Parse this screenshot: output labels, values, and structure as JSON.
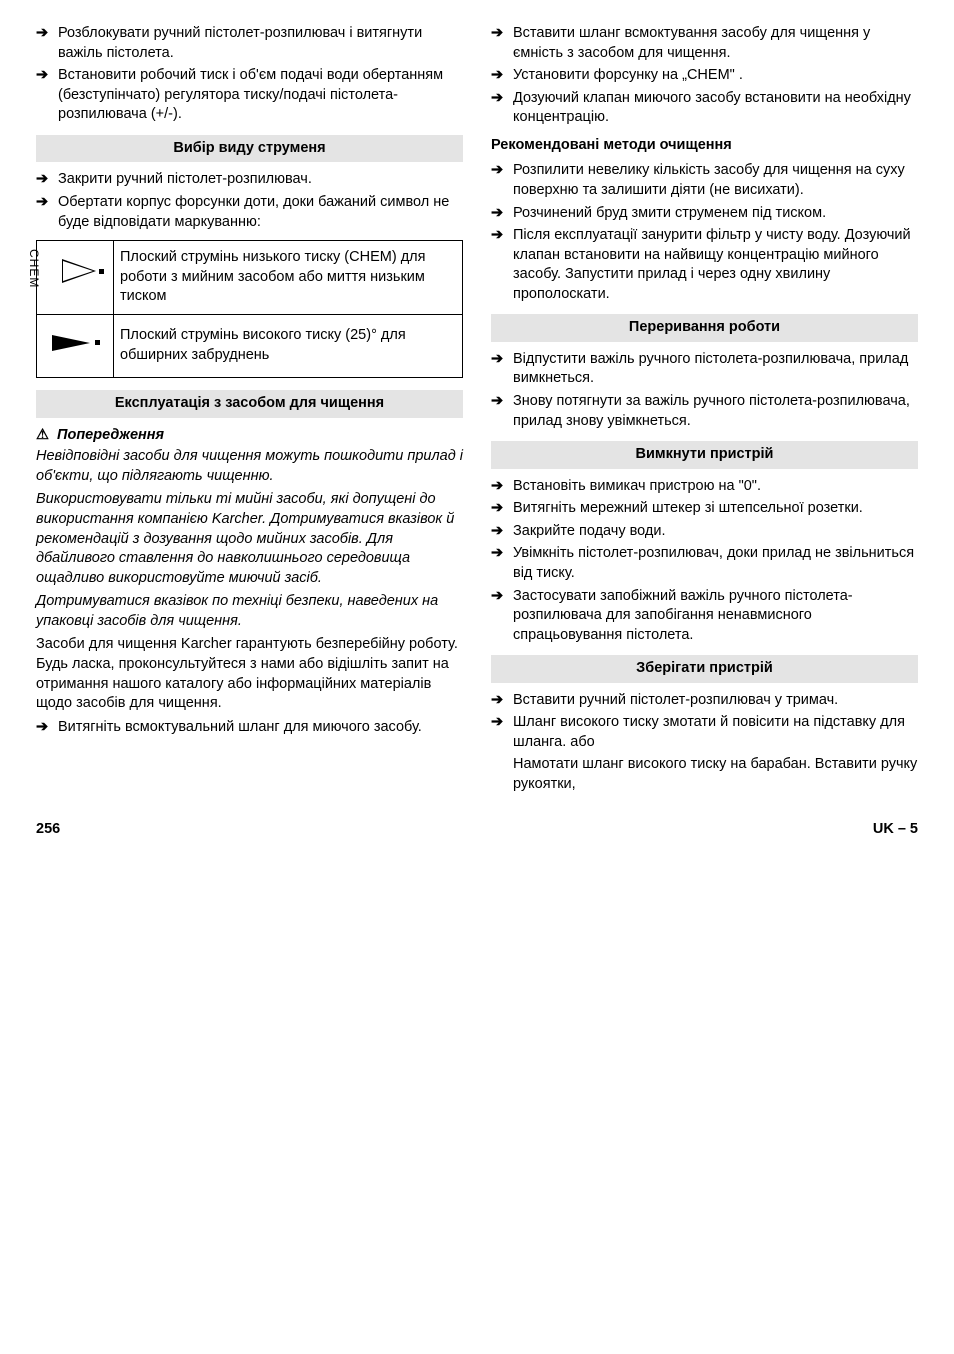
{
  "left": {
    "top_items": [
      "Розблокувати ручний пістолет-розпилювач і витягнути важіль пістолета.",
      "Встановити робочий тиск і об'єм подачі води обертанням (безступінчато) регулятора тиску/подачі пістолета-розпилювача (+/-)."
    ],
    "section1_title": "Вибір виду струменя",
    "section1_items": [
      "Закрити ручний пістолет-розпилювач.",
      "Обертати корпус форсунки доти, доки бажаний символ не буде відповідати маркуванню:"
    ],
    "table": {
      "row1": "Плоский струмінь низького тиску (CHEM) для роботи з мийним засобом або миття низьким тиском",
      "row2": "Плоский струмінь високого тиску (25)° для обширних забруднень"
    },
    "section2_title": "Експлуатація з засобом для чищення",
    "warn_label": "Попередження",
    "italic1": "Невідповідні засоби для чищення можуть пошкодити прилад і об'єкти, що підлягають чищенню.",
    "italic2": "Використовувати тільки ті мийні засоби, які допущені до використання компанією Karcher. Дотримуватися вказівок й рекомендацій з дозування щодо мийних засобів. Для дбайливого ставлення до навколишнього середовища ощадливо використовуйте миючий засіб.",
    "italic3": "Дотримуватися вказівок по техніці безпеки, наведених на упаковці засобів для чищення.",
    "para1": "Засоби для чищення Karcher гарантують безперебійну роботу. Будь ласка, проконсультуйтеся з нами або відішліть запит на отримання нашого каталогу або інформаційних матеріалів щодо засобів для чищення.",
    "bottom_item": "Витягніть всмоктувальний шланг для миючого засобу."
  },
  "right": {
    "top_items": [
      "Вставити шланг всмоктування засобу для чищення у ємність з засобом для чищення.",
      "Установити форсунку на „CHEM\" .",
      "Дозуючий клапан миючого засобу встановити на необхідну концентрацію."
    ],
    "sub1": "Рекомендовані методи очищення",
    "sub1_items": [
      "Розпилити невелику кількість засобу для чищення на суху поверхню та залишити діяти (не висихати).",
      "Розчинений бруд змити струменем під тиском.",
      "Після експлуатації занурити фільтр у чисту воду. Дозуючий клапан встановити на найвищу концентрацію мийного засобу. Запустити прилад і через одну хвилину прополоскати."
    ],
    "section2_title": "Переривання роботи",
    "section2_items": [
      "Відпустити важіль ручного пістолета-розпилювача, прилад вимкнеться.",
      "Знову потягнути за важіль ручного пістолета-розпилювача, прилад знову увімкнеться."
    ],
    "section3_title": "Вимкнути пристрій",
    "section3_items": [
      "Встановіть вимикач пристрою на \"0\".",
      "Витягніть мережний штекер зі штепсельної розетки.",
      "Закрийте подачу води.",
      "Увімкніть пістолет-розпилювач, доки прилад не звільниться від тиску.",
      "Застосувати запобіжний важіль ручного пістолета-розпилювача для запобігання ненавмисного спрацьовування пістолета."
    ],
    "section4_title": "Зберігати пристрій",
    "section4_items": [
      "Вставити ручний пістолет-розпилювач у тримач.",
      "Шланг високого тиску змотати й повісити на підставку для шланга. або"
    ],
    "tail": "Намотати шланг високого тиску на барабан. Вставити ручку рукоятки,"
  },
  "footer": {
    "page": "256",
    "code": "UK – 5"
  }
}
